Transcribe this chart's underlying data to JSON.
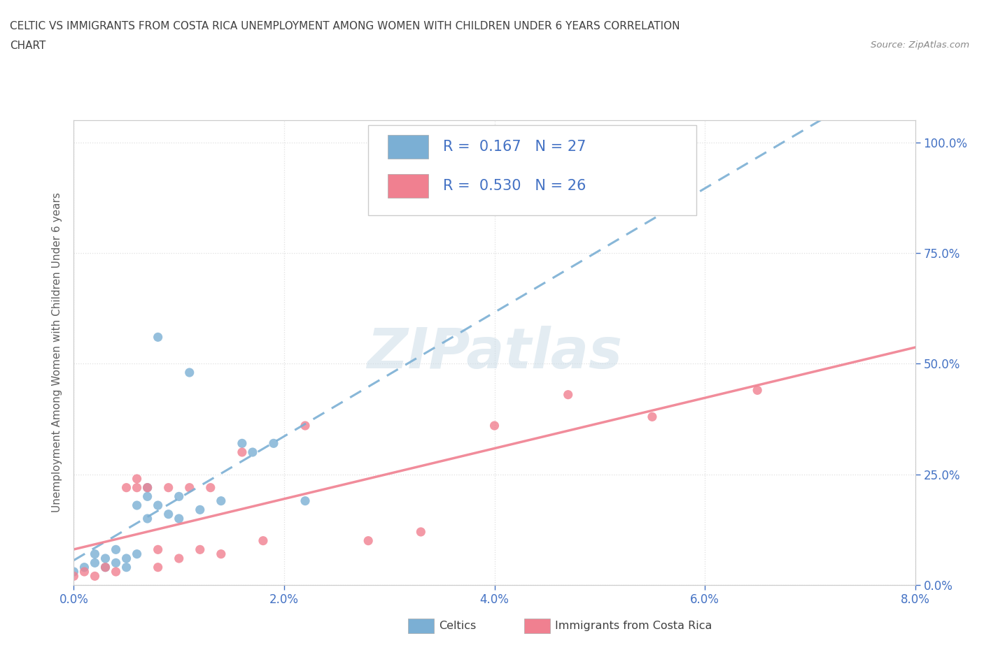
{
  "title_line1": "CELTIC VS IMMIGRANTS FROM COSTA RICA UNEMPLOYMENT AMONG WOMEN WITH CHILDREN UNDER 6 YEARS CORRELATION",
  "title_line2": "CHART",
  "source_text": "Source: ZipAtlas.com",
  "ylabel": "Unemployment Among Women with Children Under 6 years",
  "xlim": [
    0.0,
    0.08
  ],
  "ylim": [
    0.0,
    1.05
  ],
  "xtick_labels": [
    "0.0%",
    "2.0%",
    "4.0%",
    "6.0%",
    "8.0%"
  ],
  "xtick_vals": [
    0.0,
    0.02,
    0.04,
    0.06,
    0.08
  ],
  "ytick_labels": [
    "0.0%",
    "25.0%",
    "50.0%",
    "75.0%",
    "100.0%"
  ],
  "ytick_vals": [
    0.0,
    0.25,
    0.5,
    0.75,
    1.0
  ],
  "watermark": "ZIPatlas",
  "R_celtics": 0.167,
  "N_celtics": 27,
  "R_costarica": 0.53,
  "N_costarica": 26,
  "celtics_color": "#7bafd4",
  "costarica_color": "#f08090",
  "grid_color": "#e0e0e0",
  "background_color": "#ffffff",
  "title_color": "#404040",
  "axis_label_color": "#606060",
  "tick_color": "#4472c4",
  "watermark_color": "#ccdde8",
  "celtics_x": [
    0.0,
    0.001,
    0.002,
    0.002,
    0.003,
    0.003,
    0.004,
    0.004,
    0.005,
    0.005,
    0.006,
    0.006,
    0.007,
    0.007,
    0.007,
    0.008,
    0.008,
    0.009,
    0.01,
    0.01,
    0.011,
    0.012,
    0.014,
    0.016,
    0.017,
    0.019,
    0.022
  ],
  "celtics_y": [
    0.03,
    0.04,
    0.05,
    0.07,
    0.04,
    0.06,
    0.05,
    0.08,
    0.04,
    0.06,
    0.07,
    0.18,
    0.15,
    0.2,
    0.22,
    0.56,
    0.18,
    0.16,
    0.15,
    0.2,
    0.48,
    0.17,
    0.19,
    0.32,
    0.3,
    0.32,
    0.19
  ],
  "costarica_x": [
    0.0,
    0.001,
    0.002,
    0.003,
    0.004,
    0.005,
    0.006,
    0.006,
    0.007,
    0.008,
    0.008,
    0.009,
    0.01,
    0.011,
    0.012,
    0.013,
    0.014,
    0.016,
    0.018,
    0.022,
    0.028,
    0.033,
    0.04,
    0.047,
    0.055,
    0.065
  ],
  "costarica_y": [
    0.02,
    0.03,
    0.02,
    0.04,
    0.03,
    0.22,
    0.22,
    0.24,
    0.22,
    0.04,
    0.08,
    0.22,
    0.06,
    0.22,
    0.08,
    0.22,
    0.07,
    0.3,
    0.1,
    0.36,
    0.1,
    0.12,
    0.36,
    0.43,
    0.38,
    0.44
  ]
}
